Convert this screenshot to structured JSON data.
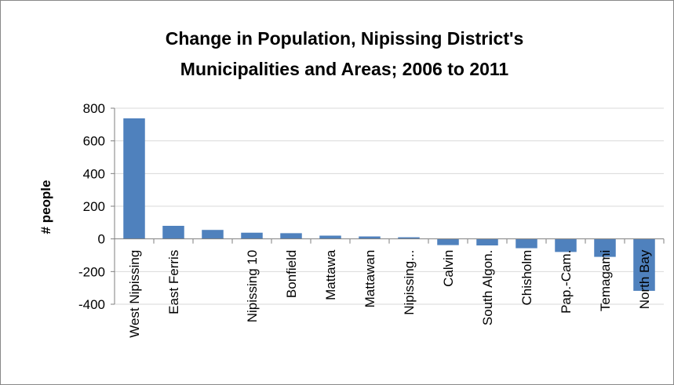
{
  "chart_data": {
    "type": "bar",
    "title_lines": [
      "Change in Population, Nipissing District's",
      "Municipalities and Areas; 2006 to 2011"
    ],
    "xlabel": "",
    "ylabel": "# people",
    "ylim": [
      -400,
      800
    ],
    "yticks": [
      800,
      600,
      400,
      200,
      0,
      -200,
      -400
    ],
    "grid": true,
    "legend": "none",
    "bar_color": "#4f81bd",
    "categories": [
      "West Nipissing",
      "East Ferris",
      "",
      "Nipissing 10",
      "Bonfield",
      "Mattawa",
      "Mattawan",
      "Nipissing...",
      "Calvin",
      "South Algon.",
      "Chisholm",
      "Pap.-Cam.",
      "Temagami",
      "North Bay"
    ],
    "values": [
      738,
      80,
      55,
      38,
      35,
      20,
      15,
      10,
      -38,
      -40,
      -57,
      -80,
      -110,
      -318
    ]
  }
}
